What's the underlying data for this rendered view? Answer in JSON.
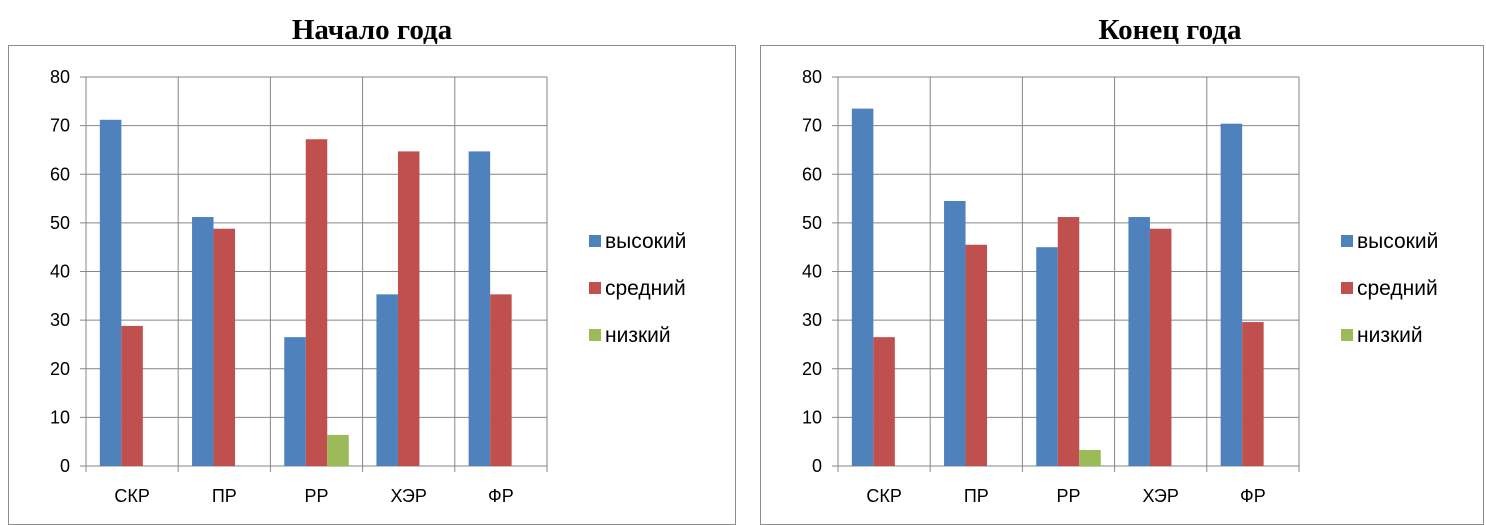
{
  "chart_data": [
    {
      "type": "bar",
      "title": "Начало года",
      "categories": [
        "СКР",
        "ПР",
        "РР",
        "ХЭР",
        "ФР"
      ],
      "series": [
        {
          "name": "высокий",
          "color": "#4f81bd",
          "values": [
            71.2,
            51.2,
            26.5,
            35.3,
            64.7
          ]
        },
        {
          "name": "средний",
          "color": "#c0504d",
          "values": [
            28.8,
            48.8,
            67.2,
            64.7,
            35.3
          ]
        },
        {
          "name": "низкий",
          "color": "#9bbb59",
          "values": [
            0,
            0,
            6.4,
            0,
            0
          ]
        }
      ],
      "ylim": [
        0,
        80
      ],
      "yticks": [
        "0",
        "10",
        "20",
        "30",
        "40",
        "50",
        "60",
        "70",
        "80"
      ],
      "grid": true,
      "legend": "right"
    },
    {
      "type": "bar",
      "title": "Конец года",
      "categories": [
        "СКР",
        "ПР",
        "РР",
        "ХЭР",
        "ФР"
      ],
      "series": [
        {
          "name": "высокий",
          "color": "#4f81bd",
          "values": [
            73.5,
            54.5,
            45.0,
            51.2,
            70.4
          ]
        },
        {
          "name": "средний",
          "color": "#c0504d",
          "values": [
            26.5,
            45.5,
            51.2,
            48.8,
            29.6
          ]
        },
        {
          "name": "низкий",
          "color": "#9bbb59",
          "values": [
            0,
            0,
            3.3,
            0,
            0
          ]
        }
      ],
      "ylim": [
        0,
        80
      ],
      "yticks": [
        "0",
        "10",
        "20",
        "30",
        "40",
        "50",
        "60",
        "70",
        "80"
      ],
      "grid": true,
      "legend": "right"
    }
  ]
}
